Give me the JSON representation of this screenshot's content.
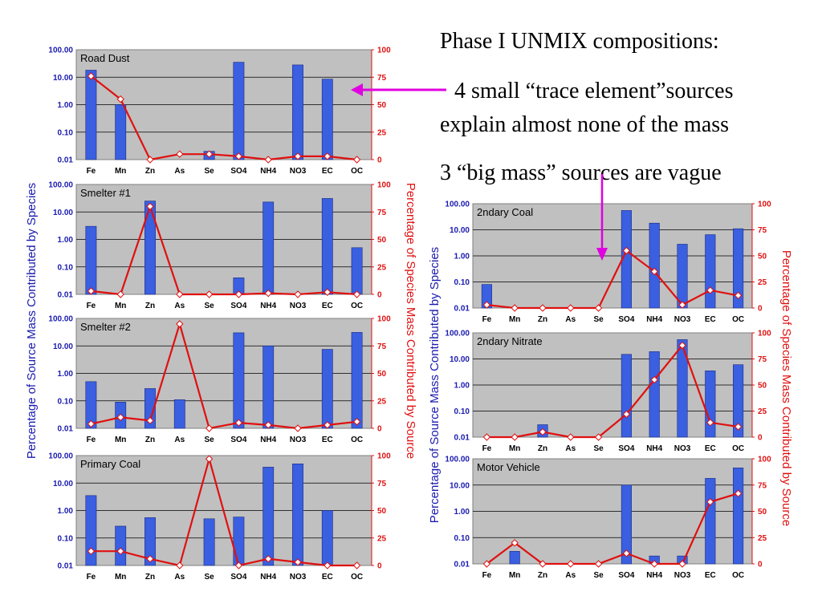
{
  "slide": {
    "heading": "Phase I UNMIX compositions:",
    "line1": "4 small “trace element”sources",
    "line2": "explain almost none of the mass",
    "line3": "3 “big mass” sources are vague"
  },
  "colors": {
    "bar": "#3a5fe0",
    "line": "#e01010",
    "plot_bg": "#c0c0c0",
    "left_axis": "#1a1ab0",
    "right_axis": "#e01010",
    "arrow": "#e000e0"
  },
  "left_axis_title": "Percentage of Source Mass Contributed by Species",
  "right_axis_title": "Percentage of Species Mass Contributed by Source",
  "chart_data": [
    {
      "type": "bar",
      "title": "Road Dust",
      "categories": [
        "Fe",
        "Mn",
        "Zn",
        "As",
        "Se",
        "SO4",
        "NH4",
        "NO3",
        "EC",
        "OC"
      ],
      "yscale": "log",
      "ylim": [
        0.01,
        100
      ],
      "yticks": [
        "0.01",
        "0.10",
        "1.00",
        "10.00",
        "100.00"
      ],
      "y2lim": [
        0,
        100
      ],
      "y2ticks": [
        "0",
        "25",
        "50",
        "75",
        "100"
      ],
      "series": [
        {
          "values": [
            18,
            1.0,
            null,
            null,
            0.02,
            35,
            null,
            28,
            8.5,
            null
          ]
        },
        {
          "type": "line",
          "axis": "right",
          "values": [
            76,
            55,
            0,
            5,
            5,
            3,
            0,
            3,
            3,
            0
          ]
        }
      ]
    },
    {
      "type": "bar",
      "title": "Smelter #1",
      "categories": [
        "Fe",
        "Mn",
        "Zn",
        "As",
        "Se",
        "SO4",
        "NH4",
        "NO3",
        "EC",
        "OC"
      ],
      "yscale": "log",
      "ylim": [
        0.01,
        100
      ],
      "yticks": [
        "0.01",
        "0.10",
        "1.00",
        "10.00",
        "100.00"
      ],
      "y2lim": [
        0,
        100
      ],
      "y2ticks": [
        "0",
        "25",
        "50",
        "75",
        "100"
      ],
      "series": [
        {
          "values": [
            3.0,
            null,
            25,
            null,
            null,
            0.04,
            23,
            null,
            31,
            0.5
          ]
        },
        {
          "type": "line",
          "axis": "right",
          "values": [
            3,
            0,
            80,
            0,
            0,
            0,
            1,
            0,
            2,
            0
          ]
        }
      ]
    },
    {
      "type": "bar",
      "title": "Smelter #2",
      "categories": [
        "Fe",
        "Mn",
        "Zn",
        "As",
        "Se",
        "SO4",
        "NH4",
        "NO3",
        "EC",
        "OC"
      ],
      "yscale": "log",
      "ylim": [
        0.01,
        100
      ],
      "yticks": [
        "0.01",
        "0.10",
        "1.00",
        "10.00",
        "100.00"
      ],
      "y2lim": [
        0,
        100
      ],
      "y2ticks": [
        "0",
        "25",
        "50",
        "75",
        "100"
      ],
      "series": [
        {
          "values": [
            0.5,
            0.09,
            0.28,
            0.11,
            null,
            30,
            10,
            null,
            7.5,
            31
          ]
        },
        {
          "type": "line",
          "axis": "right",
          "values": [
            4,
            10,
            7,
            95,
            0,
            5,
            3,
            0,
            3,
            6
          ]
        }
      ]
    },
    {
      "type": "bar",
      "title": "Primary Coal",
      "categories": [
        "Fe",
        "Mn",
        "Zn",
        "As",
        "Se",
        "SO4",
        "NH4",
        "NO3",
        "EC",
        "OC"
      ],
      "yscale": "log",
      "ylim": [
        0.01,
        100
      ],
      "yticks": [
        "0.01",
        "0.10",
        "1.00",
        "10.00",
        "100.00"
      ],
      "y2lim": [
        0,
        100
      ],
      "y2ticks": [
        "0",
        "25",
        "50",
        "75",
        "100"
      ],
      "series": [
        {
          "values": [
            3.5,
            0.27,
            0.55,
            null,
            0.5,
            0.58,
            38,
            50,
            1.0,
            null
          ]
        },
        {
          "type": "line",
          "axis": "right",
          "values": [
            13,
            13,
            6,
            0,
            97,
            0,
            6,
            3,
            0,
            0
          ]
        }
      ]
    },
    {
      "type": "bar",
      "title": "2ndary Coal",
      "categories": [
        "Fe",
        "Mn",
        "Zn",
        "As",
        "Se",
        "SO4",
        "NH4",
        "NO3",
        "EC",
        "OC"
      ],
      "yscale": "log",
      "ylim": [
        0.01,
        100
      ],
      "yticks": [
        "0.01",
        "0.10",
        "1.00",
        "10.00",
        "100.00"
      ],
      "y2lim": [
        0,
        100
      ],
      "y2ticks": [
        "0",
        "25",
        "50",
        "75",
        "100"
      ],
      "series": [
        {
          "values": [
            0.08,
            null,
            null,
            null,
            null,
            55,
            18,
            2.8,
            6.5,
            11
          ]
        },
        {
          "type": "line",
          "axis": "right",
          "values": [
            3,
            0,
            0,
            0,
            0,
            55,
            35,
            3,
            17,
            12
          ]
        }
      ]
    },
    {
      "type": "bar",
      "title": "2ndary Nitrate",
      "categories": [
        "Fe",
        "Mn",
        "Zn",
        "As",
        "Se",
        "SO4",
        "NH4",
        "NO3",
        "EC",
        "OC"
      ],
      "yscale": "log",
      "ylim": [
        0.01,
        100
      ],
      "yticks": [
        "0.01",
        "0.10",
        "1.00",
        "10.00",
        "100.00"
      ],
      "y2lim": [
        0,
        100
      ],
      "y2ticks": [
        "0",
        "25",
        "50",
        "75",
        "100"
      ],
      "series": [
        {
          "values": [
            null,
            null,
            0.03,
            null,
            null,
            15,
            19,
            55,
            3.5,
            6.0
          ]
        },
        {
          "type": "line",
          "axis": "right",
          "values": [
            0,
            0,
            5,
            0,
            0,
            22,
            55,
            88,
            14,
            10
          ]
        }
      ]
    },
    {
      "type": "bar",
      "title": "Motor Vehicle",
      "categories": [
        "Fe",
        "Mn",
        "Zn",
        "As",
        "Se",
        "SO4",
        "NH4",
        "NO3",
        "EC",
        "OC"
      ],
      "yscale": "log",
      "ylim": [
        0.01,
        100
      ],
      "yticks": [
        "0.01",
        "0.10",
        "1.00",
        "10.00",
        "100.00"
      ],
      "y2lim": [
        0,
        100
      ],
      "y2ticks": [
        "0",
        "25",
        "50",
        "75",
        "100"
      ],
      "series": [
        {
          "values": [
            null,
            0.03,
            null,
            null,
            null,
            10,
            0.02,
            0.02,
            18,
            45
          ]
        },
        {
          "type": "line",
          "axis": "right",
          "values": [
            0,
            20,
            0,
            0,
            0,
            10,
            0,
            0,
            59,
            67
          ]
        }
      ]
    }
  ]
}
